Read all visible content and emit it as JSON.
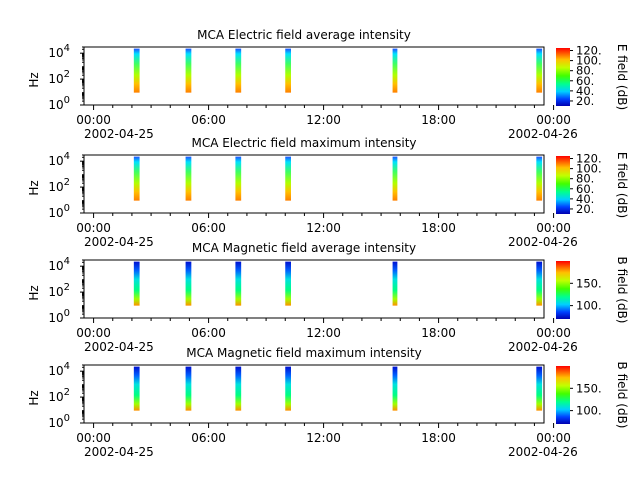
{
  "chart_data": [
    {
      "type": "heatmap",
      "title": "MCA  Electric field average intensity",
      "ylabel": "Hz",
      "y_ticks": [
        "10^0",
        "10^2",
        "10^4"
      ],
      "y_scale": "log",
      "ylim": [
        1,
        30000
      ],
      "x_ticks": [
        "00:00",
        "06:00",
        "12:00",
        "18:00",
        "00:00"
      ],
      "x_dates": {
        "start": "2002-04-25",
        "end": "2002-04-26"
      },
      "xlim_hours": [
        0,
        24
      ],
      "colorbar": {
        "label": "E field (dB)",
        "ticks": [
          "120.",
          "100.",
          "80.",
          "60.",
          "40.",
          "20."
        ],
        "range": [
          10,
          125
        ]
      },
      "palette": "hot-top",
      "passes_hours": [
        [
          2.6,
          2.9
        ],
        [
          5.3,
          5.6
        ],
        [
          7.9,
          8.2
        ],
        [
          10.5,
          10.8
        ],
        [
          16.1,
          16.35
        ],
        [
          23.6,
          23.9
        ]
      ]
    },
    {
      "type": "heatmap",
      "title": "MCA  Electric field maximum intensity",
      "ylabel": "Hz",
      "y_ticks": [
        "10^0",
        "10^2",
        "10^4"
      ],
      "y_scale": "log",
      "ylim": [
        1,
        30000
      ],
      "x_ticks": [
        "00:00",
        "06:00",
        "12:00",
        "18:00",
        "00:00"
      ],
      "x_dates": {
        "start": "2002-04-25",
        "end": "2002-04-26"
      },
      "xlim_hours": [
        0,
        24
      ],
      "colorbar": {
        "label": "E field (dB)",
        "ticks": [
          "120.",
          "100.",
          "80.",
          "60.",
          "40.",
          "20."
        ],
        "range": [
          10,
          125
        ]
      },
      "palette": "hot-top",
      "passes_hours": [
        [
          2.6,
          2.9
        ],
        [
          5.3,
          5.6
        ],
        [
          7.9,
          8.2
        ],
        [
          10.5,
          10.8
        ],
        [
          16.1,
          16.35
        ],
        [
          23.6,
          23.9
        ]
      ]
    },
    {
      "type": "heatmap",
      "title": "MCA  Magnetic field average intensity",
      "ylabel": "Hz",
      "y_ticks": [
        "10^0",
        "10^2",
        "10^4"
      ],
      "y_scale": "log",
      "ylim": [
        1,
        30000
      ],
      "x_ticks": [
        "00:00",
        "06:00",
        "12:00",
        "18:00",
        "00:00"
      ],
      "x_dates": {
        "start": "2002-04-25",
        "end": "2002-04-26"
      },
      "xlim_hours": [
        0,
        24
      ],
      "colorbar": {
        "label": "B field (dB)",
        "ticks": [
          "150.",
          "100."
        ],
        "range": [
          70,
          200
        ]
      },
      "palette": "cold-top",
      "passes_hours": [
        [
          2.6,
          2.9
        ],
        [
          5.3,
          5.6
        ],
        [
          7.9,
          8.2
        ],
        [
          10.5,
          10.8
        ],
        [
          16.1,
          16.35
        ],
        [
          23.6,
          23.9
        ]
      ]
    },
    {
      "type": "heatmap",
      "title": "MCA  Magnetic field maximum intensity",
      "ylabel": "Hz",
      "y_ticks": [
        "10^0",
        "10^2",
        "10^4"
      ],
      "y_scale": "log",
      "ylim": [
        1,
        30000
      ],
      "x_ticks": [
        "00:00",
        "06:00",
        "12:00",
        "18:00",
        "00:00"
      ],
      "x_dates": {
        "start": "2002-04-25",
        "end": "2002-04-26"
      },
      "xlim_hours": [
        0,
        24
      ],
      "colorbar": {
        "label": "B field (dB)",
        "ticks": [
          "150.",
          "100."
        ],
        "range": [
          70,
          200
        ]
      },
      "palette": "cold-top",
      "passes_hours": [
        [
          2.6,
          2.9
        ],
        [
          5.3,
          5.6
        ],
        [
          7.9,
          8.2
        ],
        [
          10.5,
          10.8
        ],
        [
          16.1,
          16.35
        ],
        [
          23.6,
          23.9
        ]
      ]
    }
  ]
}
